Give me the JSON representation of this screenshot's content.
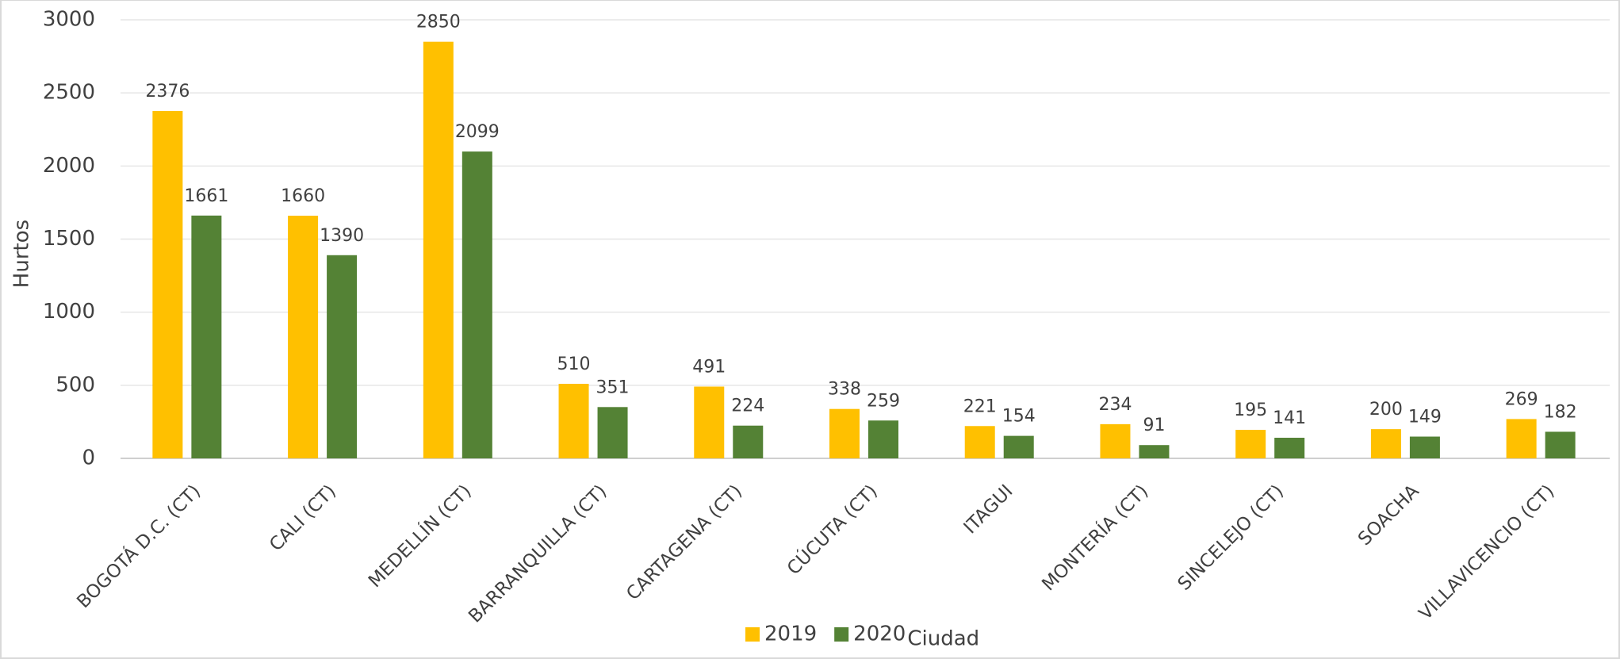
{
  "chart_data": {
    "type": "bar",
    "y_label": "Hurtos",
    "x_label": "Ciudad",
    "categories": [
      "BOGOTÁ D.C. (CT)",
      "CALI (CT)",
      "MEDELLÍN (CT)",
      "BARRANQUILLA (CT)",
      "CARTAGENA (CT)",
      "CÚCUTA (CT)",
      "ITAGUI",
      "MONTERÍA (CT)",
      "SINCELEJO (CT)",
      "SOACHA",
      "VILLAVICENCIO (CT)"
    ],
    "series": [
      {
        "name": "2019",
        "color": "#ffc000",
        "values": [
          2376,
          1660,
          2850,
          510,
          491,
          338,
          221,
          234,
          195,
          200,
          269
        ]
      },
      {
        "name": "2020",
        "color": "#548235",
        "values": [
          1661,
          1390,
          2099,
          351,
          224,
          259,
          154,
          91,
          141,
          149,
          182
        ]
      }
    ],
    "ylim": [
      0,
      3000
    ],
    "yticks": [
      0,
      500,
      1000,
      1500,
      2000,
      2500,
      3000
    ],
    "grid": true,
    "legend": "bottom"
  }
}
